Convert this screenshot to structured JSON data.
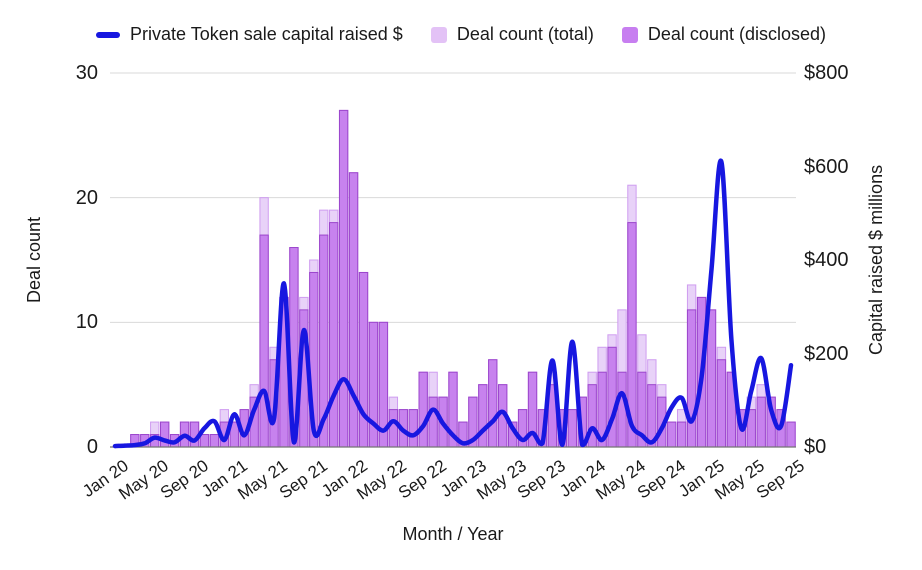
{
  "legend": {
    "items": [
      {
        "label": "Private Token sale capital raised $",
        "marker": "line",
        "color": "#1717e0"
      },
      {
        "label": "Deal count (total)",
        "marker": "square",
        "color": "#e3c2f6"
      },
      {
        "label": "Deal count (disclosed)",
        "marker": "square",
        "color": "#c77ef0"
      }
    ]
  },
  "axes": {
    "left": {
      "title": "Deal count",
      "ticks": [
        0,
        10,
        20,
        30
      ],
      "max": 30
    },
    "right": {
      "title": "Capital raised $ millions",
      "ticks": [
        "$0",
        "$200",
        "$400",
        "$600",
        "$800"
      ],
      "tick_values": [
        0,
        200,
        400,
        600,
        800
      ],
      "max": 800
    },
    "x": {
      "title": "Month / Year",
      "tick_every": 4
    }
  },
  "chart_data": {
    "type": "bar",
    "subtype": "combo-bar-line-dual-axis",
    "grid": "horizontal",
    "legend_position": "top",
    "x": [
      "Jan 20",
      "Feb 20",
      "Mar 20",
      "Apr 20",
      "May 20",
      "Jun 20",
      "Jul 20",
      "Aug 20",
      "Sep 20",
      "Oct 20",
      "Nov 20",
      "Dec 20",
      "Jan 21",
      "Feb 21",
      "Mar 21",
      "Apr 21",
      "May 21",
      "Jun 21",
      "Jul 21",
      "Aug 21",
      "Sep 21",
      "Oct 21",
      "Nov 21",
      "Dec 21",
      "Jan 22",
      "Feb 22",
      "Mar 22",
      "Apr 22",
      "May 22",
      "Jun 22",
      "Jul 22",
      "Aug 22",
      "Sep 22",
      "Oct 22",
      "Nov 22",
      "Dec 22",
      "Jan 23",
      "Feb 23",
      "Mar 23",
      "Apr 23",
      "May 23",
      "Jun 23",
      "Jul 23",
      "Aug 23",
      "Sep 23",
      "Oct 23",
      "Nov 23",
      "Dec 23",
      "Jan 24",
      "Feb 24",
      "Mar 24",
      "Apr 24",
      "May 24",
      "Jun 24",
      "Jul 24",
      "Aug 24",
      "Sep 24",
      "Oct 24",
      "Nov 24",
      "Dec 24",
      "Jan 25",
      "Feb 25",
      "Mar 25",
      "Apr 25",
      "May 25",
      "Jun 25",
      "Jul 25",
      "Aug 25",
      "Sep 25"
    ],
    "xlabel": "Month / Year",
    "ylabel_left": "Deal count",
    "ylabel_right": "Capital raised $ millions",
    "ylim_left": [
      0,
      30
    ],
    "ylim_right": [
      0,
      800
    ],
    "series": [
      {
        "name": "Deal count (total)",
        "type": "bar",
        "axis": "left",
        "fill": "#e8d2f8",
        "stroke": "#cf9df0",
        "values": [
          0,
          0,
          1,
          1,
          2,
          2,
          1,
          2,
          2,
          1,
          1,
          3,
          2,
          3,
          5,
          20,
          8,
          12,
          16,
          12,
          15,
          19,
          19,
          27,
          22,
          14,
          10,
          10,
          4,
          3,
          3,
          6,
          6,
          4,
          6,
          2,
          4,
          5,
          7,
          5,
          2,
          3,
          6,
          3,
          6,
          3,
          3,
          4,
          6,
          8,
          9,
          11,
          21,
          9,
          7,
          5,
          2,
          3,
          13,
          12,
          11,
          8,
          6,
          3,
          4,
          5,
          4,
          3,
          2
        ]
      },
      {
        "name": "Deal count (disclosed)",
        "type": "bar",
        "axis": "left",
        "fill": "#c782ee",
        "stroke": "#9b45cc",
        "values": [
          0,
          0,
          1,
          1,
          1,
          2,
          1,
          2,
          2,
          1,
          1,
          2,
          2,
          3,
          4,
          17,
          7,
          12,
          16,
          11,
          14,
          17,
          18,
          27,
          22,
          14,
          10,
          10,
          3,
          3,
          3,
          6,
          4,
          4,
          6,
          2,
          4,
          5,
          7,
          5,
          2,
          3,
          6,
          3,
          5,
          3,
          3,
          4,
          5,
          6,
          8,
          6,
          18,
          6,
          5,
          4,
          2,
          2,
          11,
          12,
          11,
          7,
          6,
          3,
          3,
          4,
          4,
          3,
          2
        ]
      },
      {
        "name": "Private Token sale capital raised $",
        "type": "line",
        "axis": "right",
        "color": "#1717e0",
        "width": 4.5,
        "values": [
          2,
          3,
          4,
          8,
          20,
          14,
          10,
          24,
          14,
          40,
          55,
          15,
          70,
          25,
          80,
          120,
          60,
          350,
          10,
          250,
          35,
          60,
          110,
          145,
          110,
          70,
          50,
          35,
          55,
          35,
          25,
          45,
          80,
          50,
          25,
          8,
          15,
          35,
          55,
          75,
          40,
          15,
          30,
          8,
          185,
          5,
          225,
          5,
          40,
          15,
          60,
          115,
          45,
          25,
          10,
          40,
          85,
          105,
          55,
          150,
          380,
          610,
          230,
          40,
          120,
          190,
          80,
          45,
          175
        ]
      }
    ]
  },
  "colors": {
    "grid": "#d9d9d9",
    "baseline": "#757575",
    "text": "#1a1a1a"
  }
}
